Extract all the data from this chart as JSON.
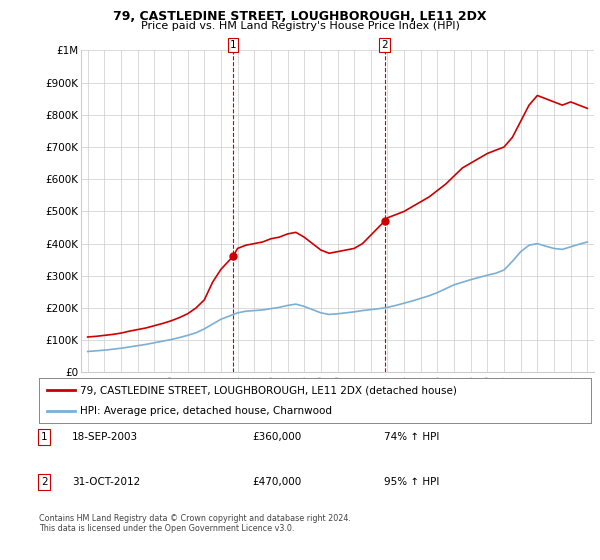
{
  "title": "79, CASTLEDINE STREET, LOUGHBOROUGH, LE11 2DX",
  "subtitle": "Price paid vs. HM Land Registry's House Price Index (HPI)",
  "ylim": [
    0,
    1000000
  ],
  "yticks": [
    0,
    100000,
    200000,
    300000,
    400000,
    500000,
    600000,
    700000,
    800000,
    900000,
    1000000
  ],
  "ytick_labels": [
    "£0",
    "£100K",
    "£200K",
    "£300K",
    "£400K",
    "£500K",
    "£600K",
    "£700K",
    "£800K",
    "£900K",
    "£1M"
  ],
  "red_line_color": "#cc0000",
  "blue_line_color": "#7bafd4",
  "vline_color": "#cc0000",
  "marker_color": "#cc0000",
  "grid_color": "#cccccc",
  "background_color": "#ffffff",
  "legend_label_red": "79, CASTLEDINE STREET, LOUGHBOROUGH, LE11 2DX (detached house)",
  "legend_label_blue": "HPI: Average price, detached house, Charnwood",
  "annotation1_label": "1",
  "annotation1_date": "18-SEP-2003",
  "annotation1_price": "£360,000",
  "annotation1_hpi": "74% ↑ HPI",
  "annotation1_year": 2003.72,
  "annotation1_value": 360000,
  "annotation2_label": "2",
  "annotation2_date": "31-OCT-2012",
  "annotation2_price": "£470,000",
  "annotation2_hpi": "95% ↑ HPI",
  "annotation2_year": 2012.83,
  "annotation2_value": 470000,
  "footer": "Contains HM Land Registry data © Crown copyright and database right 2024.\nThis data is licensed under the Open Government Licence v3.0.",
  "red_data_x": [
    1995.0,
    1995.5,
    1996.0,
    1996.5,
    1997.0,
    1997.5,
    1998.0,
    1998.5,
    1999.0,
    1999.5,
    2000.0,
    2000.5,
    2001.0,
    2001.5,
    2002.0,
    2002.5,
    2003.0,
    2003.72,
    2004.0,
    2004.5,
    2005.0,
    2005.5,
    2006.0,
    2006.5,
    2007.0,
    2007.5,
    2008.0,
    2008.5,
    2009.0,
    2009.5,
    2010.0,
    2010.5,
    2011.0,
    2011.5,
    2012.83,
    2013.0,
    2013.5,
    2014.0,
    2014.5,
    2015.0,
    2015.5,
    2016.0,
    2016.5,
    2017.0,
    2017.5,
    2018.0,
    2018.5,
    2019.0,
    2019.5,
    2020.0,
    2020.5,
    2021.0,
    2021.5,
    2022.0,
    2022.5,
    2023.0,
    2023.5,
    2024.0,
    2024.5,
    2025.0
  ],
  "red_data_y": [
    110000,
    112000,
    115000,
    118000,
    122000,
    128000,
    133000,
    138000,
    145000,
    152000,
    160000,
    170000,
    182000,
    200000,
    225000,
    280000,
    320000,
    360000,
    385000,
    395000,
    400000,
    405000,
    415000,
    420000,
    430000,
    435000,
    420000,
    400000,
    380000,
    370000,
    375000,
    380000,
    385000,
    400000,
    470000,
    480000,
    490000,
    500000,
    515000,
    530000,
    545000,
    565000,
    585000,
    610000,
    635000,
    650000,
    665000,
    680000,
    690000,
    700000,
    730000,
    780000,
    830000,
    860000,
    850000,
    840000,
    830000,
    840000,
    830000,
    820000
  ],
  "blue_data_x": [
    1995.0,
    1995.5,
    1996.0,
    1996.5,
    1997.0,
    1997.5,
    1998.0,
    1998.5,
    1999.0,
    1999.5,
    2000.0,
    2000.5,
    2001.0,
    2001.5,
    2002.0,
    2002.5,
    2003.0,
    2003.5,
    2004.0,
    2004.5,
    2005.0,
    2005.5,
    2006.0,
    2006.5,
    2007.0,
    2007.5,
    2008.0,
    2008.5,
    2009.0,
    2009.5,
    2010.0,
    2010.5,
    2011.0,
    2011.5,
    2012.0,
    2012.5,
    2013.0,
    2013.5,
    2014.0,
    2014.5,
    2015.0,
    2015.5,
    2016.0,
    2016.5,
    2017.0,
    2017.5,
    2018.0,
    2018.5,
    2019.0,
    2019.5,
    2020.0,
    2020.5,
    2021.0,
    2021.5,
    2022.0,
    2022.5,
    2023.0,
    2023.5,
    2024.0,
    2024.5,
    2025.0
  ],
  "blue_data_y": [
    65000,
    67000,
    69000,
    72000,
    75000,
    79000,
    83000,
    87000,
    92000,
    97000,
    102000,
    108000,
    115000,
    123000,
    135000,
    150000,
    165000,
    175000,
    185000,
    190000,
    192000,
    194000,
    198000,
    202000,
    208000,
    212000,
    205000,
    195000,
    185000,
    180000,
    182000,
    185000,
    188000,
    192000,
    195000,
    198000,
    202000,
    208000,
    215000,
    222000,
    230000,
    238000,
    248000,
    260000,
    272000,
    280000,
    288000,
    295000,
    302000,
    308000,
    318000,
    345000,
    375000,
    395000,
    400000,
    392000,
    385000,
    382000,
    390000,
    398000,
    405000
  ]
}
